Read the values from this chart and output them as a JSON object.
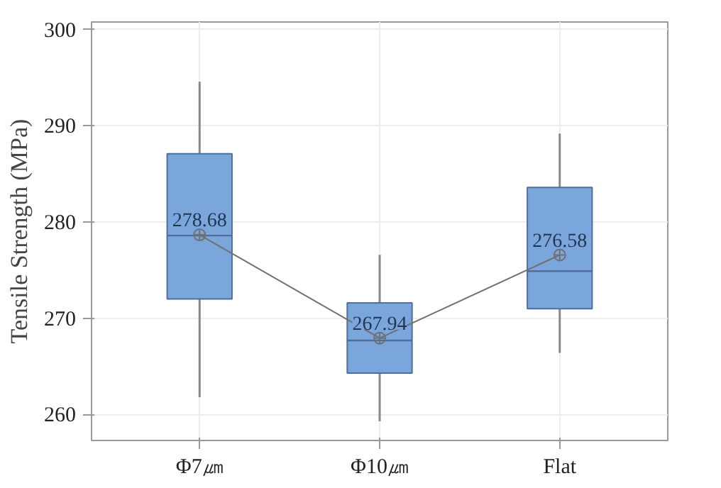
{
  "chart_data": {
    "type": "box",
    "ylabel": "Tensile Strength (MPa)",
    "categories": [
      "Φ7㎛",
      "Φ10㎛",
      "Flat"
    ],
    "color": "#7aa6dc",
    "boxes": [
      {
        "low": 261.8,
        "q1": 272.0,
        "median": 278.6,
        "q3": 287.1,
        "high": 294.6
      },
      {
        "low": 259.3,
        "q1": 264.3,
        "median": 267.7,
        "q3": 271.6,
        "high": 276.6
      },
      {
        "low": 266.4,
        "q1": 271.0,
        "median": 274.9,
        "q3": 283.6,
        "high": 289.2
      }
    ],
    "series": [
      {
        "type": "line",
        "color": "#707070",
        "values": [
          278.68,
          267.94,
          276.58
        ],
        "value_labels": [
          "278.68",
          "267.94",
          "276.58"
        ]
      }
    ],
    "marker": "circle",
    "ylim": [
      257.3,
      300.8
    ],
    "yticks": [
      260,
      270,
      280,
      290,
      300
    ],
    "grid": true
  }
}
